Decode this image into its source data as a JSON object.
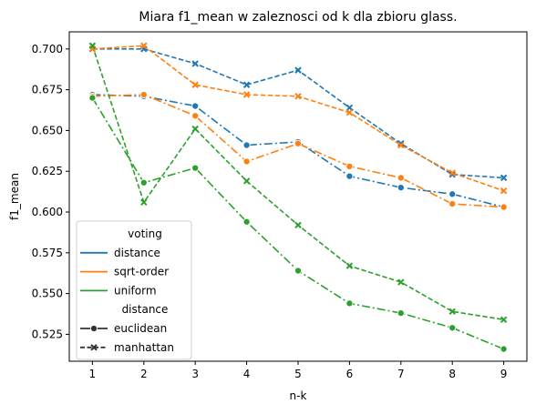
{
  "chart_data": {
    "type": "line",
    "title": "Miara f1_mean w zaleznosci od k dla zbioru glass.",
    "xlabel": "n-k",
    "ylabel": "f1_mean",
    "x": [
      1,
      2,
      3,
      4,
      5,
      6,
      7,
      8,
      9
    ],
    "xticks": [
      "1",
      "2",
      "3",
      "4",
      "5",
      "6",
      "7",
      "8",
      "9"
    ],
    "xlim": [
      0.55,
      9.45
    ],
    "ylim": [
      0.5085,
      0.7105
    ],
    "yticks": [
      0.525,
      0.55,
      0.575,
      0.6,
      0.625,
      0.65,
      0.675,
      0.7
    ],
    "ytick_labels": [
      "0.525",
      "0.550",
      "0.575",
      "0.600",
      "0.625",
      "0.650",
      "0.675",
      "0.700"
    ],
    "grid": false,
    "legend_position": "lower-left",
    "legend": {
      "title_hue": "voting",
      "title_style": "distance",
      "hue_entries": [
        {
          "label": "distance",
          "color": "#1f77b4"
        },
        {
          "label": "sqrt-order",
          "color": "#ff7f0e"
        },
        {
          "label": "uniform",
          "color": "#2ca02c"
        }
      ],
      "style_entries": [
        {
          "label": "euclidean",
          "marker": "circle",
          "dash": "dashdot"
        },
        {
          "label": "manhattan",
          "marker": "x",
          "dash": "dashed"
        }
      ]
    },
    "series": [
      {
        "voting": "distance",
        "distance": "euclidean",
        "color": "#1f77b4",
        "marker": "circle",
        "dash": "dashdot",
        "values": [
          0.672,
          0.671,
          0.665,
          0.641,
          0.643,
          0.622,
          0.615,
          0.611,
          0.603
        ]
      },
      {
        "voting": "distance",
        "distance": "manhattan",
        "color": "#1f77b4",
        "marker": "x",
        "dash": "dashed",
        "values": [
          0.7,
          0.7,
          0.691,
          0.678,
          0.687,
          0.664,
          0.642,
          0.623,
          0.621
        ]
      },
      {
        "voting": "sqrt-order",
        "distance": "euclidean",
        "color": "#ff7f0e",
        "marker": "circle",
        "dash": "dashdot",
        "values": [
          0.671,
          0.672,
          0.659,
          0.631,
          0.642,
          0.628,
          0.621,
          0.605,
          0.603
        ]
      },
      {
        "voting": "sqrt-order",
        "distance": "manhattan",
        "color": "#ff7f0e",
        "marker": "x",
        "dash": "dashed",
        "values": [
          0.7,
          0.702,
          0.678,
          0.672,
          0.671,
          0.661,
          0.641,
          0.624,
          0.613
        ]
      },
      {
        "voting": "uniform",
        "distance": "euclidean",
        "color": "#2ca02c",
        "marker": "circle",
        "dash": "dashdot",
        "values": [
          0.67,
          0.618,
          0.627,
          0.594,
          0.564,
          0.544,
          0.538,
          0.529,
          0.516
        ]
      },
      {
        "voting": "uniform",
        "distance": "manhattan",
        "color": "#2ca02c",
        "marker": "x",
        "dash": "dashed",
        "values": [
          0.702,
          0.606,
          0.651,
          0.619,
          0.592,
          0.567,
          0.557,
          0.539,
          0.534
        ]
      }
    ]
  }
}
